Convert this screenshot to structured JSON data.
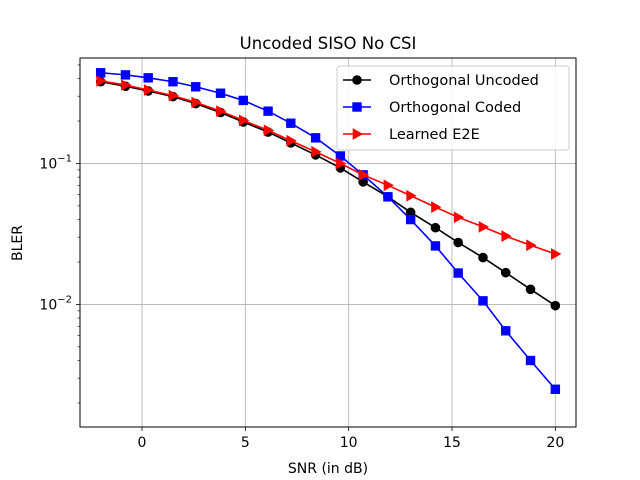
{
  "chart_data": {
    "type": "line",
    "title": "Uncoded SISO No CSI",
    "xlabel": "SNR (in dB)",
    "ylabel": "BLER",
    "yscale": "log",
    "xlim": [
      -3,
      21
    ],
    "ylim": [
      0.00135,
      0.56
    ],
    "grid": true,
    "legend_position": "top-right",
    "x_ticks": [
      0,
      5,
      10,
      15,
      20
    ],
    "y_ticks": [
      {
        "value": 0.1,
        "base": "10",
        "exp": "−1"
      },
      {
        "value": 0.01,
        "base": "10",
        "exp": "−2"
      }
    ],
    "x": [
      -2,
      -0.8,
      0.3,
      1.5,
      2.6,
      3.8,
      4.9,
      6.1,
      7.2,
      8.4,
      9.6,
      10.7,
      11.9,
      13.0,
      14.2,
      15.3,
      16.5,
      17.6,
      18.8,
      20
    ],
    "series": [
      {
        "name": "Orthogonal Uncoded",
        "color": "#000000",
        "marker": "circle",
        "values": [
          0.38,
          0.353,
          0.327,
          0.298,
          0.266,
          0.23,
          0.197,
          0.167,
          0.14,
          0.115,
          0.093,
          0.074,
          0.058,
          0.045,
          0.035,
          0.0275,
          0.0215,
          0.0168,
          0.0128,
          0.0098
        ]
      },
      {
        "name": "Orthogonal Coded",
        "color": "#0000ff",
        "marker": "square",
        "values": [
          0.44,
          0.425,
          0.405,
          0.38,
          0.35,
          0.315,
          0.28,
          0.235,
          0.193,
          0.152,
          0.113,
          0.083,
          0.058,
          0.04,
          0.026,
          0.0167,
          0.0106,
          0.0065,
          0.004,
          0.0025
        ]
      },
      {
        "name": "Learned E2E",
        "color": "#ff0000",
        "marker": "triangle-right",
        "values": [
          0.385,
          0.36,
          0.332,
          0.303,
          0.271,
          0.235,
          0.202,
          0.172,
          0.145,
          0.121,
          0.1,
          0.083,
          0.07,
          0.059,
          0.049,
          0.0415,
          0.0355,
          0.0305,
          0.0263,
          0.0228
        ]
      }
    ]
  }
}
